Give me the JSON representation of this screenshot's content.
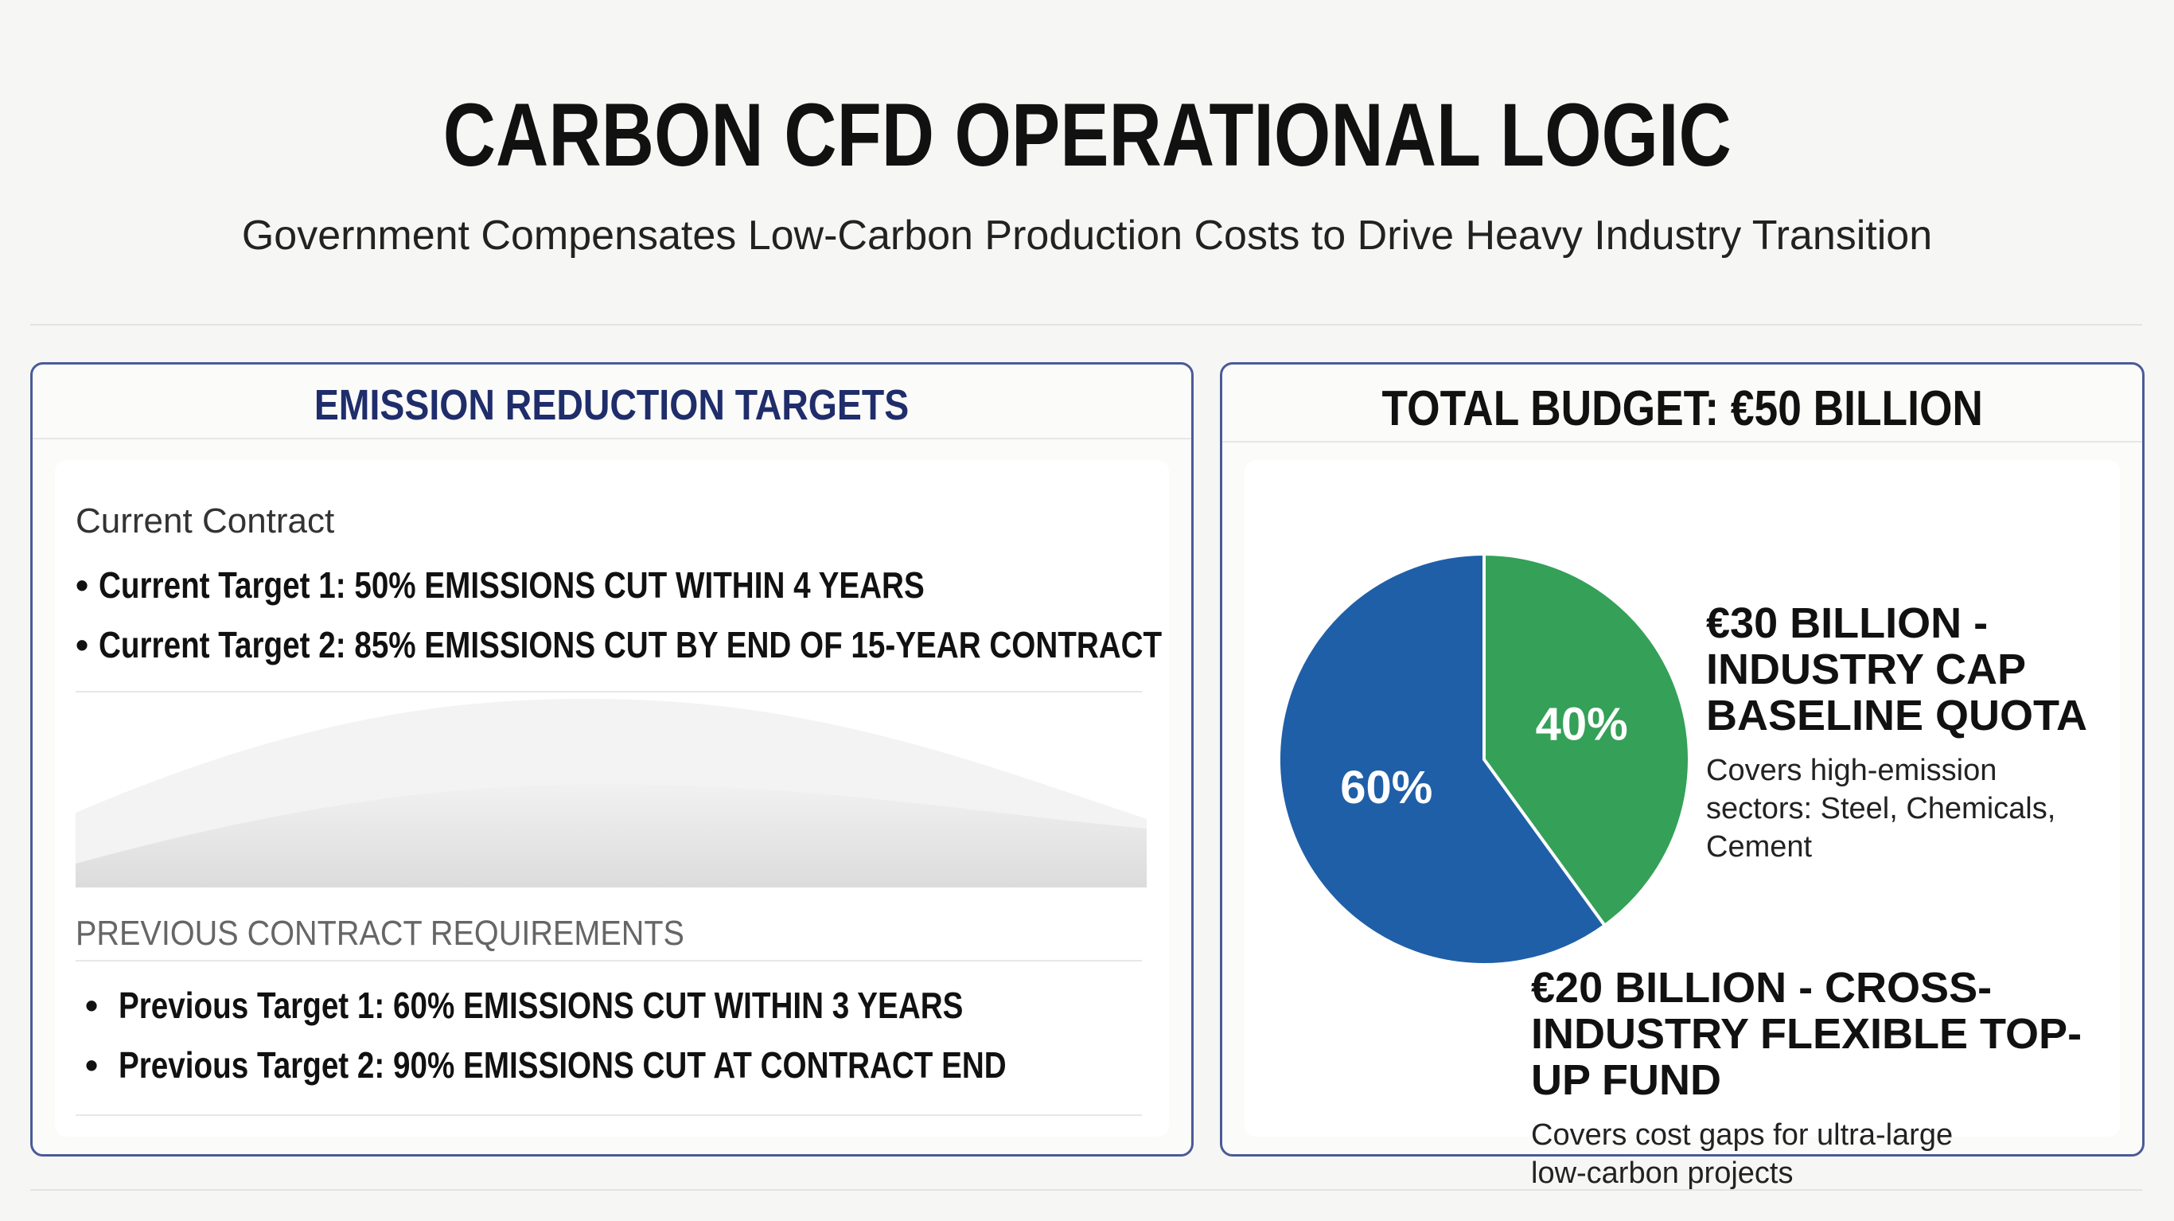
{
  "header": {
    "title": "CARBON CFD OPERATIONAL LOGIC",
    "subtitle": "Government Compensates Low-Carbon Production Costs to Drive Heavy Industry Transition"
  },
  "targets": {
    "heading": "EMISSION REDUCTION TARGETS",
    "current": {
      "label": "Current Contract",
      "items": [
        "Current Target 1: 50% EMISSIONS CUT WITHIN 4 YEARS",
        "Current Target 2: 85% EMISSIONS CUT BY END OF 15-YEAR CONTRACT"
      ]
    },
    "previous": {
      "label": "PREVIOUS CONTRACT REQUIREMENTS",
      "items": [
        "Previous Target 1: 60% EMISSIONS CUT WITHIN 3 YEARS",
        "Previous Target 2: 90% EMISSIONS CUT AT CONTRACT END"
      ]
    }
  },
  "chart_data": {
    "type": "pie",
    "title": "TOTAL BUDGET: €50 BILLION",
    "values": [
      60,
      40
    ],
    "value_labels": [
      "60%",
      "40%"
    ],
    "colors": [
      "#1f5fa8",
      "#34a058"
    ],
    "annotations": [
      {
        "title": "€30 BILLION - INDUSTRY CAP BASELINE QUOTA",
        "text": "Covers high-emission sectors: Steel, Chemicals, Cement"
      },
      {
        "title": "€20 BILLION - CROSS-INDUSTRY FLEXIBLE TOP-UP FUND",
        "text": "Covers cost gaps for ultra-large low-carbon projects"
      }
    ]
  }
}
